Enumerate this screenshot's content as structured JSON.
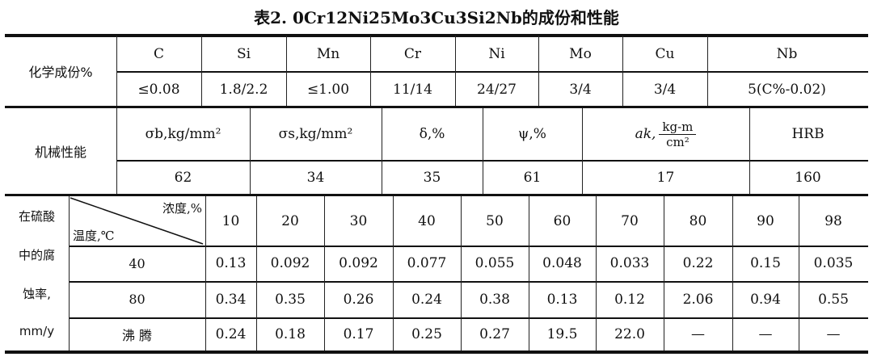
{
  "title": "表2. 0Cr12Ni25Mo3Cu3Si2Nb的成份和性能",
  "composition": {
    "label": "化学成份%",
    "elements": [
      "C",
      "Si",
      "Mn",
      "Cr",
      "Ni",
      "Mo",
      "Cu",
      "Nb"
    ],
    "values": [
      "≤0.08",
      "1.8/2.2",
      "≤1.00",
      "11/14",
      "24/27",
      "3/4",
      "3/4",
      "5(C%-0.02)"
    ]
  },
  "mechanical": {
    "label": "机械性能",
    "headers": [
      "σb,kg/mm²",
      "σs,kg/mm²",
      "δ,%",
      "ψ,%",
      "ak,",
      "HRB"
    ],
    "ak_unit_num": "kg-m",
    "ak_unit_den": "cm²",
    "values": [
      "62",
      "34",
      "35",
      "61",
      "17",
      "160"
    ]
  },
  "corrosion": {
    "label_lines": [
      "在硫酸",
      "中的腐",
      "蚀率,",
      "mm/y"
    ],
    "diag_top": "浓度,%",
    "diag_bottom": "温度,℃",
    "concentrations": [
      "10",
      "20",
      "30",
      "40",
      "50",
      "60",
      "70",
      "80",
      "90",
      "98"
    ],
    "rows": [
      {
        "temp": "40",
        "values": [
          "0.13",
          "0.092",
          "0.092",
          "0.077",
          "0.055",
          "0.048",
          "0.033",
          "0.22",
          "0.15",
          "0.035"
        ]
      },
      {
        "temp": "80",
        "values": [
          "0.34",
          "0.35",
          "0.26",
          "0.24",
          "0.38",
          "0.13",
          "0.12",
          "2.06",
          "0.94",
          "0.55"
        ]
      },
      {
        "temp": "沸 腾",
        "values": [
          "0.24",
          "0.18",
          "0.17",
          "0.25",
          "0.27",
          "19.5",
          "22.0",
          "—",
          "—",
          "—"
        ]
      }
    ]
  }
}
